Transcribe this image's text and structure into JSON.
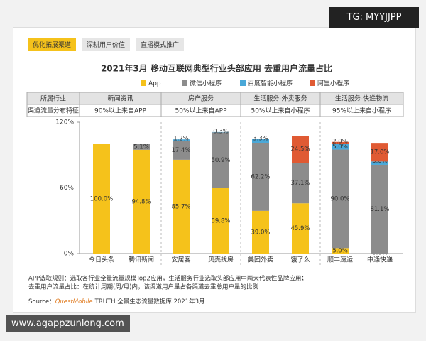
{
  "watermark_top": "TG: MYYJJPP",
  "watermark_bottom": "www.agappzunlong.com",
  "tabs": [
    "优化拓展渠道",
    "深耕用户价值",
    "直播模式推广"
  ],
  "table": {
    "rows": [
      [
        "所属行业",
        "新闻资讯",
        "房产服务",
        "生活服务-外卖服务",
        "生活服务-快递物流"
      ],
      [
        "渠道流量分布特征",
        "90%以上来自APP",
        "50%以上来自APP",
        "50%以上来自小程序",
        "95%以上来自小程序"
      ]
    ]
  },
  "notes": [
    "APP选取规则：选取各行业全量流量规模Top2应用，生活服务行业选取头部应用中两大代表性品牌应用；",
    "去重用户流量占比：在统计周期(周/月)内，该渠道用户量占各渠道去重总用户量的比例"
  ],
  "source": {
    "prefix": "Source：",
    "brand": "QuestMobile",
    "rest": "TRUTH 全景生态流量数据库 2021年3月"
  },
  "chart_data": {
    "type": "stacked_bar",
    "title": "2021年3月 移动互联网典型行业头部应用 去重用户流量占比",
    "categories": [
      "今日头条",
      "腾讯新闻",
      "安居客",
      "贝壳找房",
      "美团外卖",
      "饿了么",
      "顺丰速运",
      "中通快递"
    ],
    "series": [
      {
        "name": "App",
        "color": "#f5c21b",
        "values": [
          100.0,
          94.8,
          85.7,
          59.8,
          39.0,
          45.9,
          5.0,
          0.0
        ],
        "value_labels": [
          "100.0%",
          "94.8%",
          "85.7%",
          "59.8%",
          "39.0%",
          "45.9%",
          "5.0%",
          "0.0%"
        ]
      },
      {
        "name": "微信小程序",
        "color": "#8c8c8c",
        "values": [
          null,
          5.1,
          17.4,
          50.9,
          62.2,
          37.1,
          90.0,
          81.1
        ],
        "value_labels": [
          null,
          "5.1%",
          "17.4%",
          "50.9%",
          "62.2%",
          "37.1%",
          "90.0%",
          "81.1%"
        ]
      },
      {
        "name": "百度智能小程序",
        "color": "#4aa8d8",
        "values": [
          null,
          null,
          1.2,
          0.3,
          3.3,
          null,
          5.0,
          3.0
        ],
        "value_labels": [
          null,
          null,
          "1.2%",
          "0.3%",
          "3.3%",
          null,
          "5.0%",
          "3.0%"
        ]
      },
      {
        "name": "阿里小程序",
        "color": "#e05a33",
        "values": [
          null,
          null,
          null,
          null,
          null,
          24.5,
          2.0,
          17.0
        ],
        "value_labels": [
          null,
          null,
          null,
          null,
          null,
          "24.5%",
          "2.0%",
          "17.0%"
        ]
      }
    ],
    "ylim": [
      0,
      120
    ],
    "yticks": [
      {
        "value": 0,
        "label": "0%"
      },
      {
        "value": 60,
        "label": "60%"
      },
      {
        "value": 120,
        "label": "120%"
      }
    ]
  }
}
